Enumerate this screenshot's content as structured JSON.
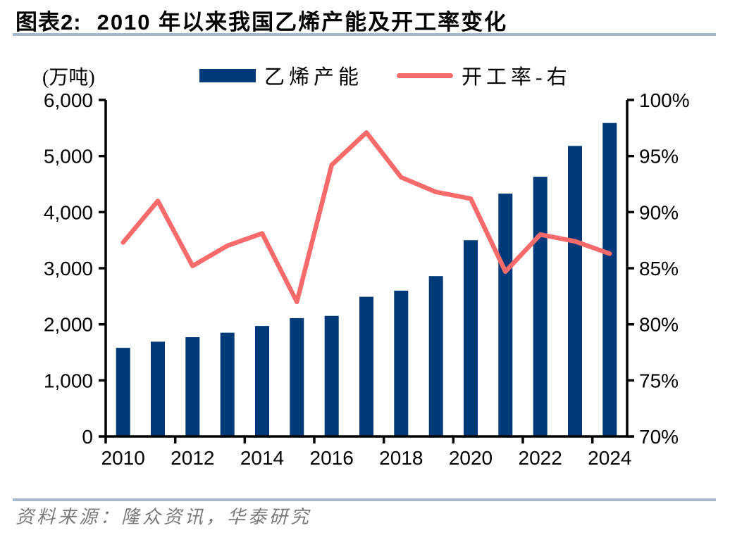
{
  "figure": {
    "label": "图表2:",
    "title": "2010 年以来我国乙烯产能及开工率变化"
  },
  "legend": {
    "unit_label": "(万吨)",
    "series1_label": "乙烯产能",
    "series2_label": "开工率-右"
  },
  "footer": {
    "source_text": "资料来源：隆众资讯，华泰研究"
  },
  "colors": {
    "bar": "#003a78",
    "line": "#f96a6a",
    "divider": "#a6b8cc",
    "footer_text": "#7a7a7a",
    "axis": "#000000"
  },
  "chart_data": {
    "type": "bar+line",
    "title": "2010 年以来我国乙烯产能及开工率变化",
    "categories": [
      2010,
      2011,
      2012,
      2013,
      2014,
      2015,
      2016,
      2017,
      2018,
      2019,
      2020,
      2021,
      2022,
      2023,
      2024
    ],
    "series": [
      {
        "name": "乙烯产能",
        "type": "bar",
        "axis": "left",
        "unit": "万吨",
        "values": [
          1580,
          1690,
          1770,
          1850,
          1970,
          2110,
          2150,
          2490,
          2600,
          2860,
          3500,
          4330,
          4630,
          5180,
          5590
        ]
      },
      {
        "name": "开工率-右",
        "type": "line",
        "axis": "right",
        "unit": "%",
        "values": [
          87.3,
          91.0,
          85.2,
          87.0,
          88.1,
          82.0,
          94.2,
          97.1,
          93.1,
          91.8,
          91.2,
          84.7,
          88.0,
          87.4,
          86.3
        ]
      }
    ],
    "left_axis": {
      "min": 0,
      "max": 6000,
      "tick_labels": [
        "0",
        "1,000",
        "2,000",
        "3,000",
        "4,000",
        "5,000",
        "6,000"
      ]
    },
    "right_axis": {
      "min": 70,
      "max": 100,
      "tick_labels": [
        "70%",
        "75%",
        "80%",
        "85%",
        "90%",
        "95%",
        "100%"
      ]
    },
    "x_tick_labels": [
      "2010",
      "2012",
      "2014",
      "2016",
      "2018",
      "2020",
      "2022",
      "2024"
    ],
    "grid": false,
    "legend_position": "top"
  }
}
